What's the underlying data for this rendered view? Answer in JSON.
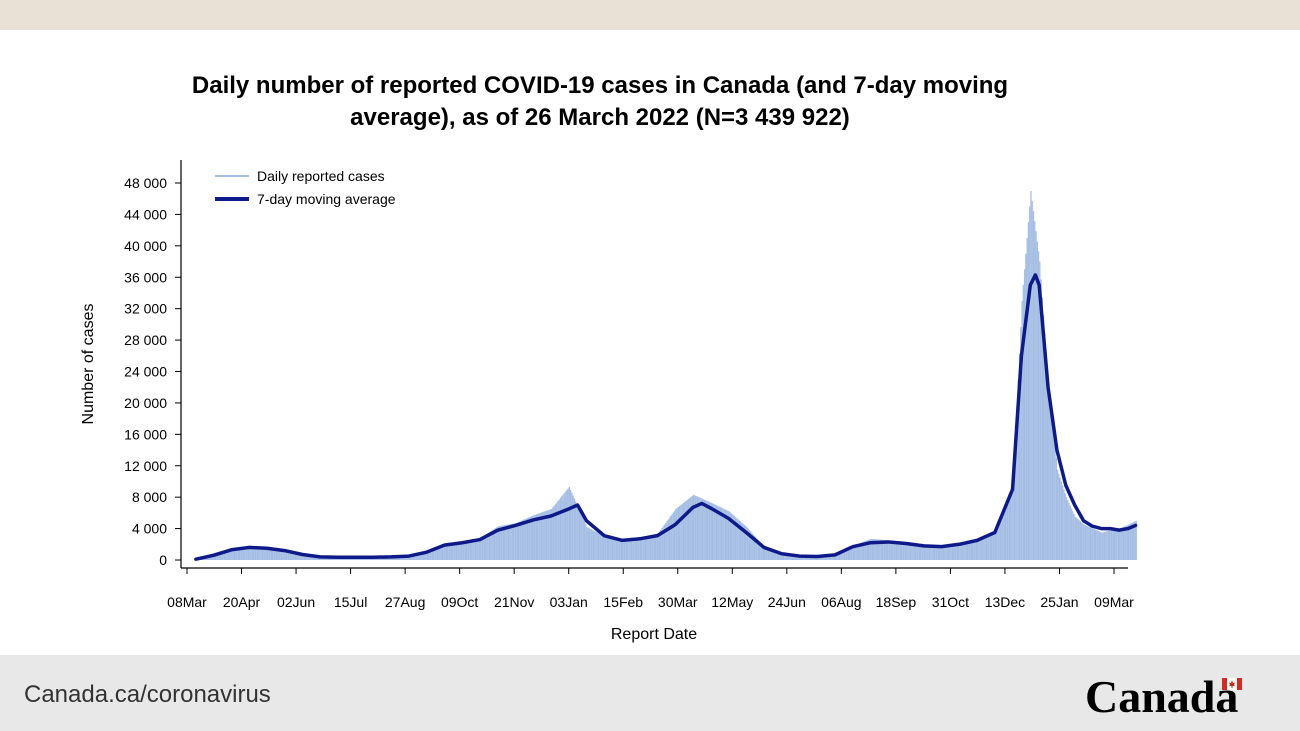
{
  "colors": {
    "top_band": "#e9e1d6",
    "footer_bg": "#e8e8e8",
    "daily_bars": "#a4bde4",
    "moving_avg": "#0f1a8a",
    "axis": "#000000"
  },
  "footer": {
    "url": "Canada.ca/coronavirus",
    "wordmark": "Canada",
    "flag_icon": "canada-flag-icon"
  },
  "chart_data": {
    "type": "bar",
    "title": "Daily number of reported COVID-19 cases in Canada (and 7-day moving average), as of 26 March 2022 (N=3 439 922)",
    "xlabel": "Report Date",
    "ylabel": "Number of cases",
    "ylim": [
      0,
      48000
    ],
    "yticks": [
      0,
      4000,
      8000,
      12000,
      16000,
      20000,
      24000,
      28000,
      32000,
      36000,
      40000,
      44000,
      48000
    ],
    "ytick_labels": [
      "0",
      "4 000",
      "8 000",
      "12 000",
      "16 000",
      "20 000",
      "24 000",
      "28 000",
      "32 000",
      "36 000",
      "40 000",
      "44 000",
      "48 000"
    ],
    "xlim": [
      "2020-03-08",
      "2022-03-26"
    ],
    "xticks": [
      "2020-03-08",
      "2020-04-20",
      "2020-06-02",
      "2020-07-15",
      "2020-08-27",
      "2020-10-09",
      "2020-11-21",
      "2021-01-03",
      "2021-02-15",
      "2021-03-30",
      "2021-05-12",
      "2021-06-24",
      "2021-08-06",
      "2021-09-18",
      "2021-10-31",
      "2021-12-13",
      "2022-01-25",
      "2022-03-09"
    ],
    "xtick_labels": [
      "08Mar",
      "20Apr",
      "02Jun",
      "15Jul",
      "27Aug",
      "09Oct",
      "21Nov",
      "03Jan",
      "15Feb",
      "30Mar",
      "12May",
      "24Jun",
      "06Aug",
      "18Sep",
      "31Oct",
      "13Dec",
      "25Jan",
      "09Mar"
    ],
    "legend": {
      "placement": "top-left",
      "entries": [
        "Daily reported cases",
        "7-day moving average"
      ]
    },
    "grid": false,
    "series": [
      {
        "name": "Daily reported cases",
        "kind": "bar",
        "x": [
          "2020-03-15",
          "2020-03-29",
          "2020-04-12",
          "2020-04-26",
          "2020-05-10",
          "2020-05-24",
          "2020-06-07",
          "2020-06-21",
          "2020-07-05",
          "2020-07-19",
          "2020-08-02",
          "2020-08-16",
          "2020-08-30",
          "2020-09-13",
          "2020-09-27",
          "2020-10-11",
          "2020-10-25",
          "2020-11-08",
          "2020-11-22",
          "2020-12-06",
          "2020-12-20",
          "2021-01-03",
          "2021-01-17",
          "2021-01-31",
          "2021-02-14",
          "2021-02-28",
          "2021-03-14",
          "2021-03-28",
          "2021-04-11",
          "2021-04-25",
          "2021-05-09",
          "2021-05-23",
          "2021-06-06",
          "2021-06-20",
          "2021-07-04",
          "2021-07-18",
          "2021-08-01",
          "2021-08-15",
          "2021-08-29",
          "2021-09-12",
          "2021-09-26",
          "2021-10-10",
          "2021-10-24",
          "2021-11-07",
          "2021-11-21",
          "2021-12-05",
          "2021-12-19",
          "2021-12-26",
          "2022-01-02",
          "2022-01-09",
          "2022-01-16",
          "2022-01-23",
          "2022-01-30",
          "2022-02-06",
          "2022-02-13",
          "2022-02-20",
          "2022-02-27",
          "2022-03-06",
          "2022-03-13",
          "2022-03-20",
          "2022-03-26"
        ],
        "values": [
          250,
          900,
          1500,
          1700,
          1600,
          1200,
          700,
          400,
          350,
          400,
          400,
          400,
          550,
          1000,
          2000,
          2300,
          2800,
          4300,
          4700,
          5700,
          6500,
          9300,
          4200,
          3000,
          2500,
          2800,
          3400,
          6500,
          8300,
          7300,
          6200,
          4200,
          1600,
          800,
          400,
          450,
          700,
          1800,
          2700,
          2500,
          2300,
          2000,
          1800,
          2100,
          2500,
          3800,
          9500,
          33000,
          47000,
          38000,
          22000,
          11500,
          8000,
          5500,
          4500,
          4000,
          3500,
          3800,
          4000,
          4500,
          5000
        ]
      },
      {
        "name": "7-day moving average",
        "kind": "line",
        "x": [
          "2020-03-15",
          "2020-03-29",
          "2020-04-12",
          "2020-04-26",
          "2020-05-10",
          "2020-05-24",
          "2020-06-07",
          "2020-06-21",
          "2020-07-05",
          "2020-07-19",
          "2020-08-02",
          "2020-08-16",
          "2020-08-30",
          "2020-09-13",
          "2020-09-27",
          "2020-10-11",
          "2020-10-25",
          "2020-11-08",
          "2020-11-22",
          "2020-12-06",
          "2020-12-20",
          "2021-01-03",
          "2021-01-10",
          "2021-01-17",
          "2021-01-31",
          "2021-02-14",
          "2021-02-28",
          "2021-03-14",
          "2021-03-28",
          "2021-04-11",
          "2021-04-18",
          "2021-04-25",
          "2021-05-09",
          "2021-05-23",
          "2021-06-06",
          "2021-06-20",
          "2021-07-04",
          "2021-07-18",
          "2021-08-01",
          "2021-08-15",
          "2021-08-29",
          "2021-09-12",
          "2021-09-26",
          "2021-10-10",
          "2021-10-24",
          "2021-11-07",
          "2021-11-21",
          "2021-12-05",
          "2021-12-19",
          "2021-12-26",
          "2022-01-02",
          "2022-01-06",
          "2022-01-09",
          "2022-01-16",
          "2022-01-23",
          "2022-01-30",
          "2022-02-06",
          "2022-02-13",
          "2022-02-20",
          "2022-02-27",
          "2022-03-06",
          "2022-03-13",
          "2022-03-20",
          "2022-03-26"
        ],
        "values": [
          100,
          600,
          1300,
          1600,
          1500,
          1200,
          700,
          400,
          350,
          350,
          350,
          400,
          500,
          1000,
          1900,
          2200,
          2600,
          3800,
          4400,
          5100,
          5600,
          6500,
          7000,
          5000,
          3100,
          2500,
          2700,
          3100,
          4500,
          6700,
          7200,
          6600,
          5300,
          3500,
          1600,
          800,
          500,
          450,
          650,
          1700,
          2200,
          2300,
          2100,
          1800,
          1700,
          2000,
          2500,
          3500,
          9000,
          26000,
          35000,
          36300,
          35000,
          22000,
          14000,
          9500,
          7000,
          5000,
          4300,
          4000,
          4000,
          3800,
          4000,
          4400
        ]
      }
    ]
  }
}
